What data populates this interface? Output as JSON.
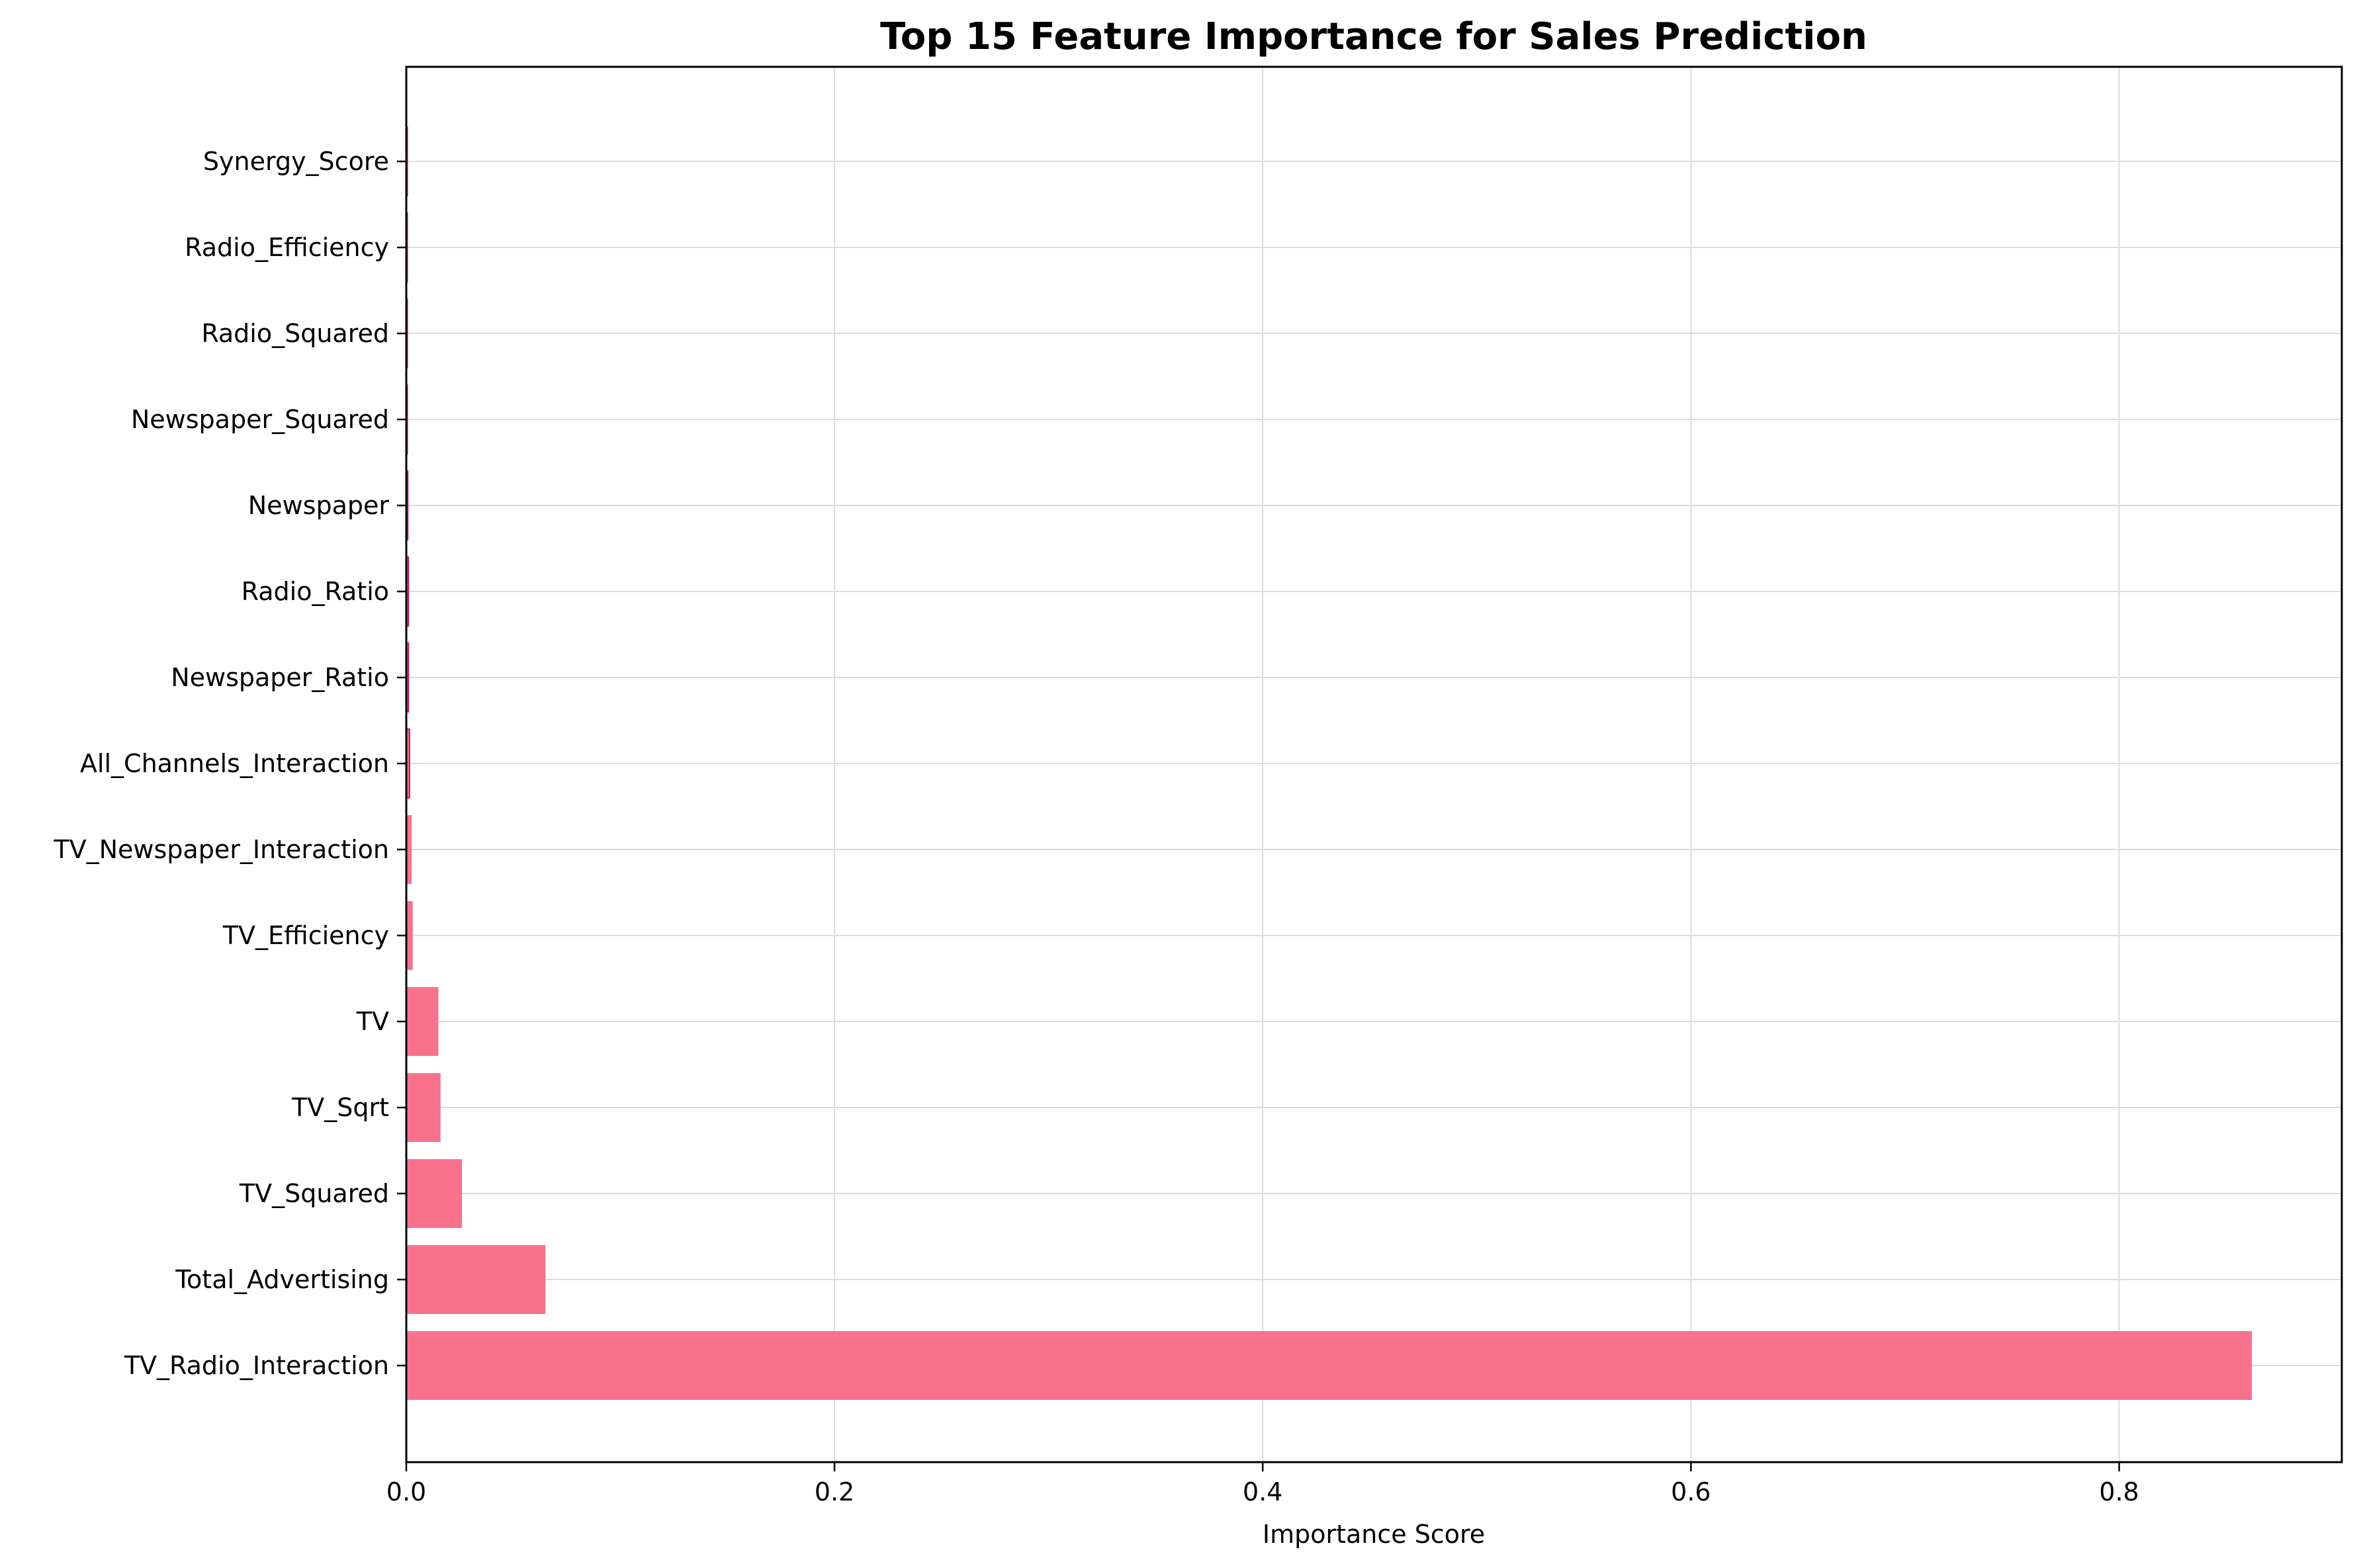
{
  "chart_data": {
    "type": "bar",
    "orientation": "horizontal",
    "title": "Top 15 Feature Importance for Sales Prediction",
    "xlabel": "Importance Score",
    "ylabel": "",
    "xlim": [
      0,
      0.904
    ],
    "xticks": [
      0.0,
      0.2,
      0.4,
      0.6,
      0.8
    ],
    "xtick_labels": [
      "0.0",
      "0.2",
      "0.4",
      "0.6",
      "0.8"
    ],
    "grid": true,
    "bar_color": "#f7728a",
    "bar_edge_color": "#c2185b",
    "categories": [
      "TV_Radio_Interaction",
      "Total_Advertising",
      "TV_Squared",
      "TV_Sqrt",
      "TV",
      "TV_Efficiency",
      "TV_Newspaper_Interaction",
      "All_Channels_Interaction",
      "Newspaper_Ratio",
      "Radio_Ratio",
      "Newspaper",
      "Newspaper_Squared",
      "Radio_Squared",
      "Radio_Efficiency",
      "Synergy_Score"
    ],
    "values": [
      0.862,
      0.065,
      0.026,
      0.016,
      0.015,
      0.003,
      0.0025,
      0.0015,
      0.001,
      0.001,
      0.0007,
      0.0002,
      0.0001,
      5e-05,
      3e-05
    ]
  }
}
